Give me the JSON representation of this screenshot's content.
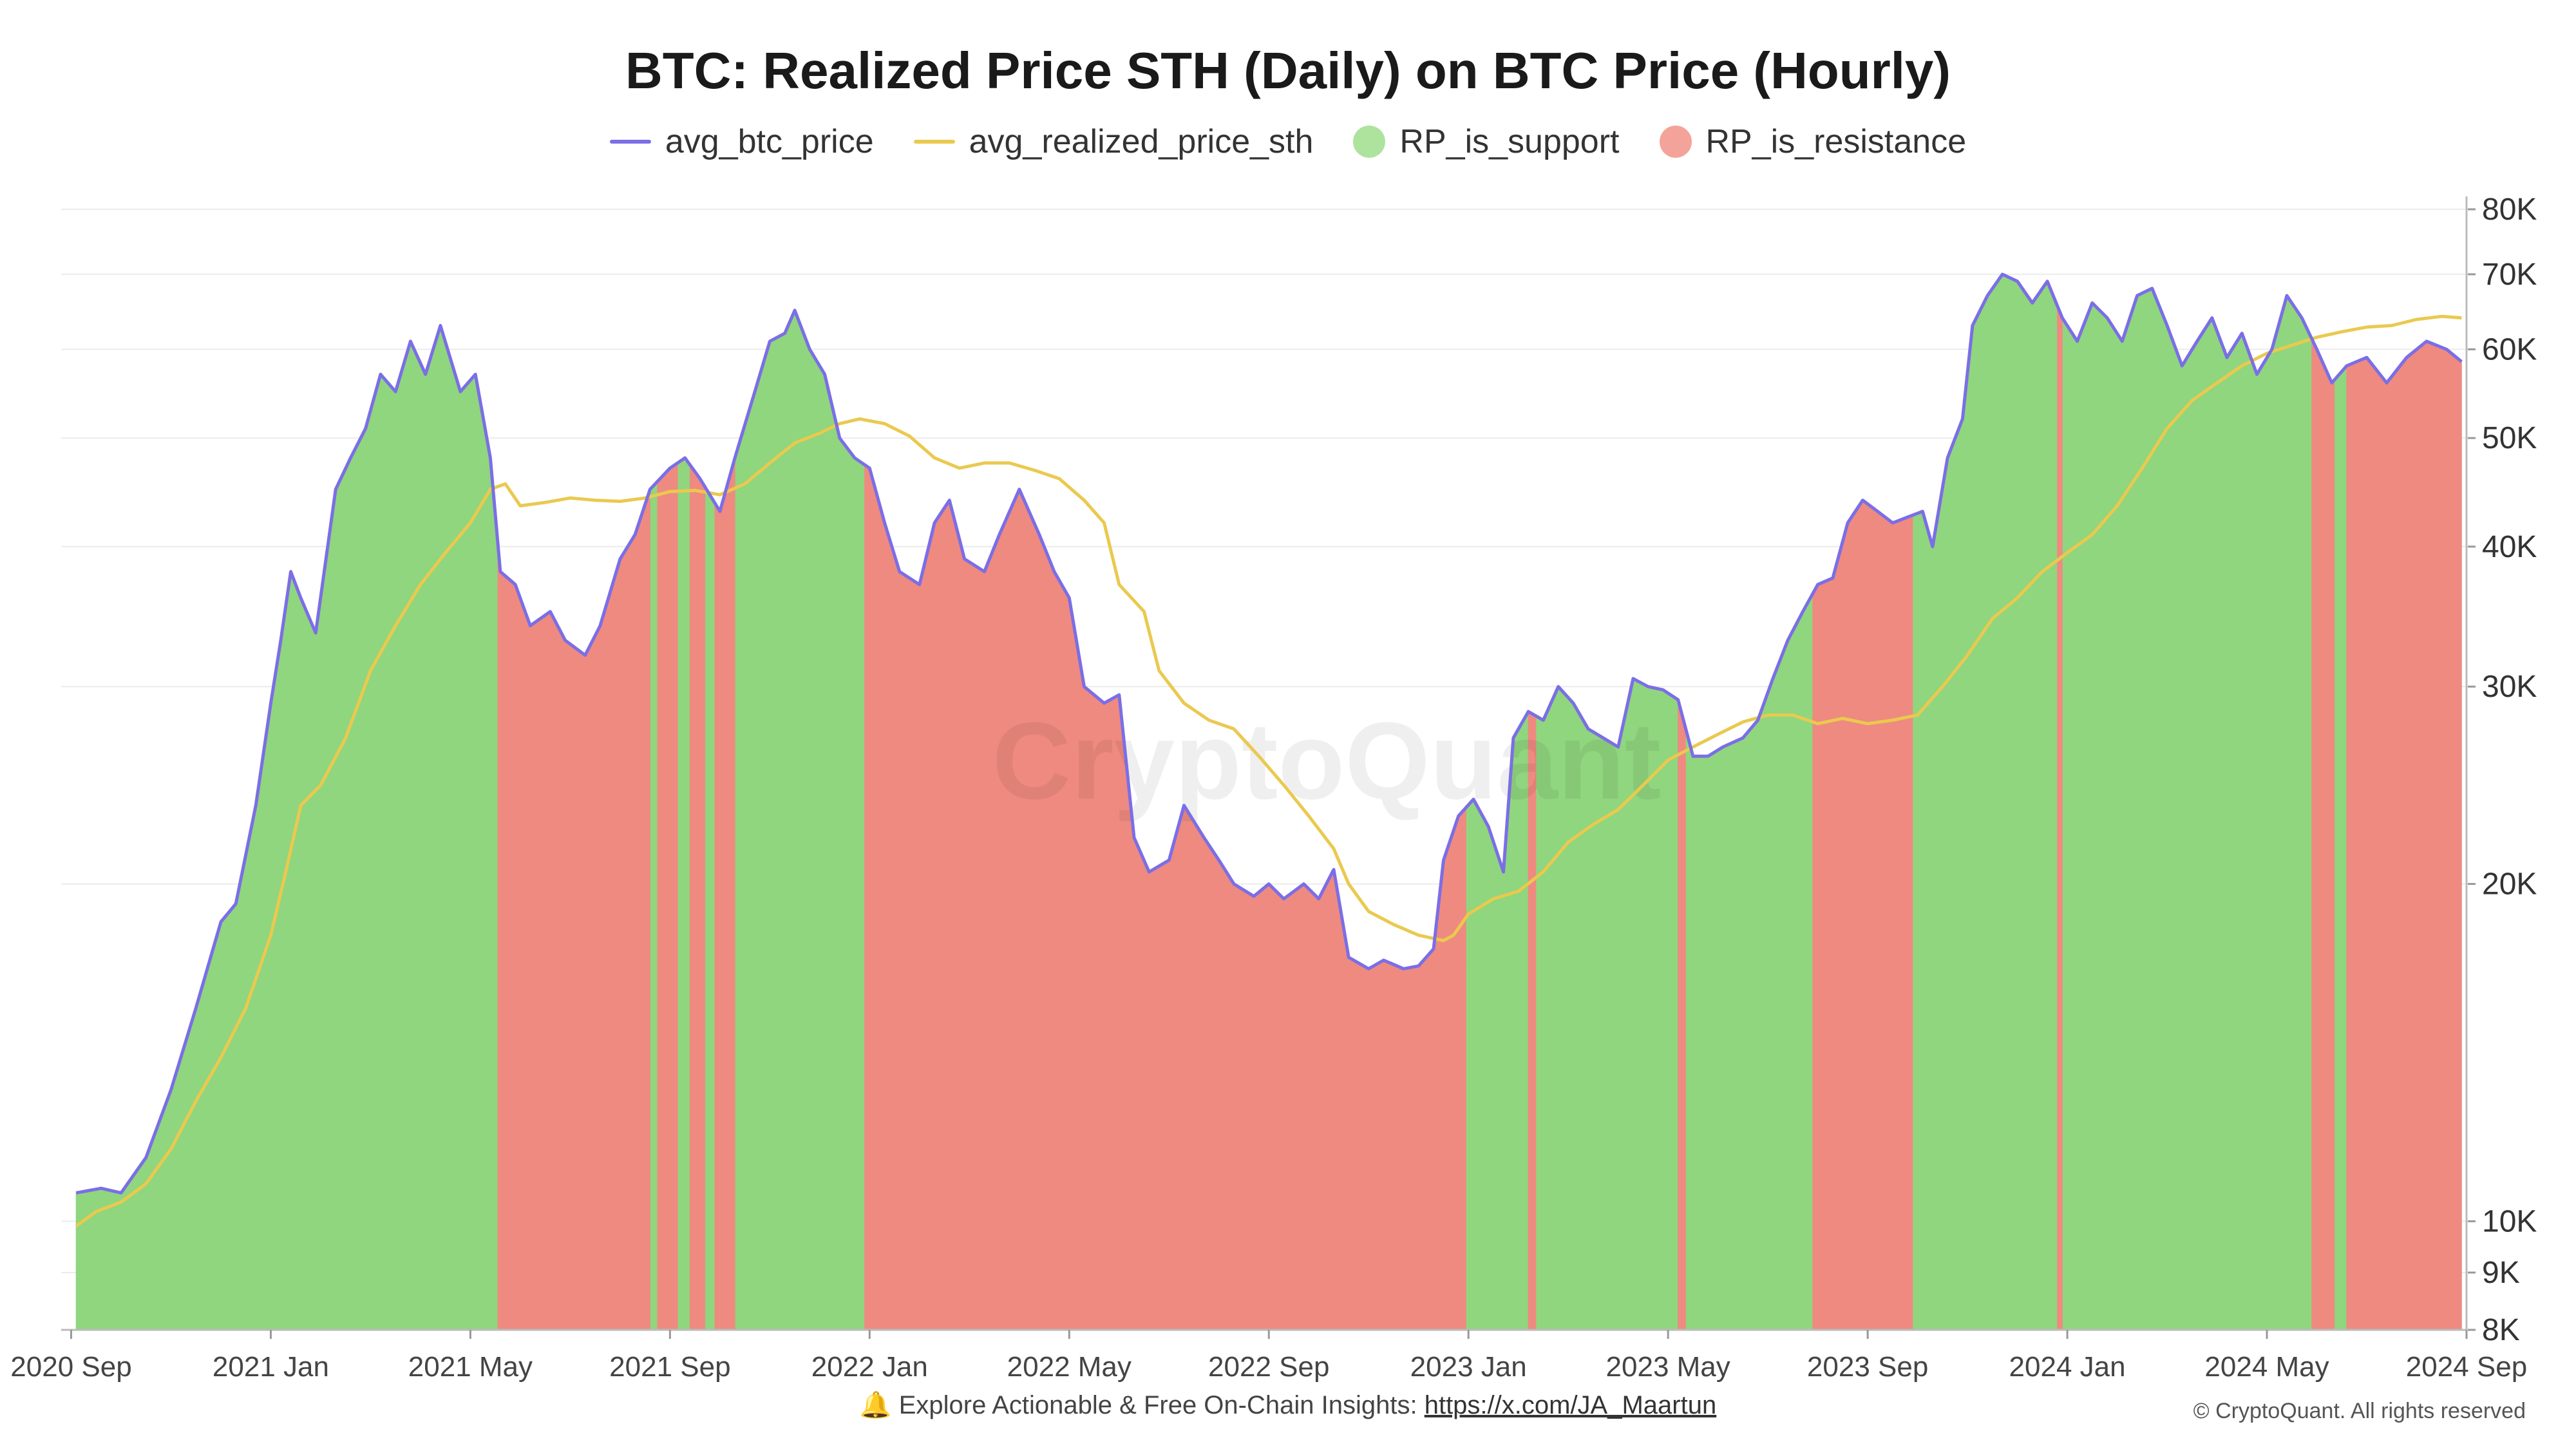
{
  "chart_data": {
    "type": "area",
    "title": "BTC: Realized Price STH (Daily) on BTC Price (Hourly)",
    "yscale": "log",
    "ylim": [
      8000,
      80000
    ],
    "y_ticks": [
      {
        "value": 80000,
        "label": "80K"
      },
      {
        "value": 70000,
        "label": "70K"
      },
      {
        "value": 60000,
        "label": "60K"
      },
      {
        "value": 50000,
        "label": "50K"
      },
      {
        "value": 40000,
        "label": "40K"
      },
      {
        "value": 30000,
        "label": "30K"
      },
      {
        "value": 20000,
        "label": "20K"
      },
      {
        "value": 10000,
        "label": "10K"
      },
      {
        "value": 9000,
        "label": "9K"
      },
      {
        "value": 8000,
        "label": "8K"
      }
    ],
    "x_ticks": [
      {
        "month": 0,
        "label": "2020 Sep"
      },
      {
        "month": 4,
        "label": "2021 Jan"
      },
      {
        "month": 8,
        "label": "2021 May"
      },
      {
        "month": 12,
        "label": "2021 Sep"
      },
      {
        "month": 16,
        "label": "2022 Jan"
      },
      {
        "month": 20,
        "label": "2022 May"
      },
      {
        "month": 24,
        "label": "2022 Sep"
      },
      {
        "month": 28,
        "label": "2023 Jan"
      },
      {
        "month": 32,
        "label": "2023 May"
      },
      {
        "month": 36,
        "label": "2023 Sep"
      },
      {
        "month": 40,
        "label": "2024 Jan"
      },
      {
        "month": 44,
        "label": "2024 May"
      },
      {
        "month": 48,
        "label": "2024 Sep"
      }
    ],
    "x_range_months": [
      -0.2,
      48.0
    ],
    "grid": true,
    "legend_position": "top-center",
    "series": [
      {
        "name": "avg_btc_price",
        "color": "#7b6ee6",
        "points": [
          [
            0.1,
            10600
          ],
          [
            0.6,
            10700
          ],
          [
            1.0,
            10600
          ],
          [
            1.5,
            11400
          ],
          [
            2.0,
            13100
          ],
          [
            2.5,
            15500
          ],
          [
            3.0,
            18500
          ],
          [
            3.3,
            19200
          ],
          [
            3.7,
            23500
          ],
          [
            4.0,
            29000
          ],
          [
            4.2,
            33000
          ],
          [
            4.4,
            38000
          ],
          [
            4.6,
            36000
          ],
          [
            4.9,
            33500
          ],
          [
            5.3,
            45000
          ],
          [
            5.6,
            48000
          ],
          [
            5.9,
            51000
          ],
          [
            6.2,
            57000
          ],
          [
            6.5,
            55000
          ],
          [
            6.8,
            61000
          ],
          [
            7.1,
            57000
          ],
          [
            7.4,
            63000
          ],
          [
            7.8,
            55000
          ],
          [
            8.1,
            57000
          ],
          [
            8.4,
            48000
          ],
          [
            8.6,
            38000
          ],
          [
            8.9,
            37000
          ],
          [
            9.2,
            34000
          ],
          [
            9.6,
            35000
          ],
          [
            9.9,
            33000
          ],
          [
            10.3,
            32000
          ],
          [
            10.6,
            34000
          ],
          [
            11.0,
            39000
          ],
          [
            11.3,
            41000
          ],
          [
            11.6,
            45000
          ],
          [
            12.0,
            47000
          ],
          [
            12.3,
            48000
          ],
          [
            12.6,
            46000
          ],
          [
            13.0,
            43000
          ],
          [
            13.3,
            48000
          ],
          [
            13.7,
            55000
          ],
          [
            14.0,
            61000
          ],
          [
            14.3,
            62000
          ],
          [
            14.5,
            65000
          ],
          [
            14.8,
            60000
          ],
          [
            15.1,
            57000
          ],
          [
            15.4,
            50000
          ],
          [
            15.7,
            48000
          ],
          [
            16.0,
            47000
          ],
          [
            16.3,
            42000
          ],
          [
            16.6,
            38000
          ],
          [
            17.0,
            37000
          ],
          [
            17.3,
            42000
          ],
          [
            17.6,
            44000
          ],
          [
            17.9,
            39000
          ],
          [
            18.3,
            38000
          ],
          [
            18.6,
            41000
          ],
          [
            19.0,
            45000
          ],
          [
            19.4,
            41000
          ],
          [
            19.7,
            38000
          ],
          [
            20.0,
            36000
          ],
          [
            20.3,
            30000
          ],
          [
            20.7,
            29000
          ],
          [
            21.0,
            29500
          ],
          [
            21.3,
            22000
          ],
          [
            21.6,
            20500
          ],
          [
            22.0,
            21000
          ],
          [
            22.3,
            23500
          ],
          [
            22.7,
            22000
          ],
          [
            23.0,
            21000
          ],
          [
            23.3,
            20000
          ],
          [
            23.7,
            19500
          ],
          [
            24.0,
            20000
          ],
          [
            24.3,
            19400
          ],
          [
            24.7,
            20000
          ],
          [
            25.0,
            19400
          ],
          [
            25.3,
            20600
          ],
          [
            25.6,
            17200
          ],
          [
            26.0,
            16800
          ],
          [
            26.3,
            17100
          ],
          [
            26.7,
            16800
          ],
          [
            27.0,
            16900
          ],
          [
            27.3,
            17500
          ],
          [
            27.5,
            21000
          ],
          [
            27.8,
            23000
          ],
          [
            28.1,
            23800
          ],
          [
            28.4,
            22500
          ],
          [
            28.7,
            20500
          ],
          [
            28.9,
            27000
          ],
          [
            29.2,
            28500
          ],
          [
            29.5,
            28000
          ],
          [
            29.8,
            30000
          ],
          [
            30.1,
            29000
          ],
          [
            30.4,
            27500
          ],
          [
            30.7,
            27000
          ],
          [
            31.0,
            26500
          ],
          [
            31.3,
            30500
          ],
          [
            31.6,
            30000
          ],
          [
            31.9,
            29800
          ],
          [
            32.2,
            29200
          ],
          [
            32.5,
            26000
          ],
          [
            32.8,
            26000
          ],
          [
            33.1,
            26500
          ],
          [
            33.5,
            27000
          ],
          [
            33.8,
            28000
          ],
          [
            34.1,
            30500
          ],
          [
            34.4,
            33000
          ],
          [
            34.7,
            35000
          ],
          [
            35.0,
            37000
          ],
          [
            35.3,
            37500
          ],
          [
            35.6,
            42000
          ],
          [
            35.9,
            44000
          ],
          [
            36.2,
            43000
          ],
          [
            36.5,
            42000
          ],
          [
            36.8,
            42500
          ],
          [
            37.1,
            43000
          ],
          [
            37.3,
            40000
          ],
          [
            37.6,
            48000
          ],
          [
            37.9,
            52000
          ],
          [
            38.1,
            63000
          ],
          [
            38.4,
            67000
          ],
          [
            38.7,
            70000
          ],
          [
            39.0,
            69000
          ],
          [
            39.3,
            66000
          ],
          [
            39.6,
            69000
          ],
          [
            39.9,
            64000
          ],
          [
            40.2,
            61000
          ],
          [
            40.5,
            66000
          ],
          [
            40.8,
            64000
          ],
          [
            41.1,
            61000
          ],
          [
            41.4,
            67000
          ],
          [
            41.7,
            68000
          ],
          [
            42.0,
            63000
          ],
          [
            42.3,
            58000
          ],
          [
            42.6,
            61000
          ],
          [
            42.9,
            64000
          ],
          [
            43.2,
            59000
          ],
          [
            43.5,
            62000
          ],
          [
            43.8,
            57000
          ],
          [
            44.1,
            60000
          ],
          [
            44.4,
            67000
          ],
          [
            44.7,
            64000
          ],
          [
            45.0,
            60000
          ],
          [
            45.3,
            56000
          ],
          [
            45.6,
            58000
          ],
          [
            46.0,
            59000
          ],
          [
            46.4,
            56000
          ],
          [
            46.8,
            59000
          ],
          [
            47.2,
            61000
          ],
          [
            47.6,
            60000
          ],
          [
            47.9,
            58500
          ]
        ]
      },
      {
        "name": "avg_realized_price_sth",
        "color": "#eac94f",
        "points": [
          [
            0.1,
            9900
          ],
          [
            0.5,
            10200
          ],
          [
            1.0,
            10400
          ],
          [
            1.5,
            10800
          ],
          [
            2.0,
            11600
          ],
          [
            2.5,
            12800
          ],
          [
            3.0,
            14000
          ],
          [
            3.5,
            15500
          ],
          [
            4.0,
            18000
          ],
          [
            4.3,
            20500
          ],
          [
            4.6,
            23500
          ],
          [
            5.0,
            24500
          ],
          [
            5.5,
            27000
          ],
          [
            6.0,
            31000
          ],
          [
            6.5,
            34000
          ],
          [
            7.0,
            37000
          ],
          [
            7.5,
            39500
          ],
          [
            8.0,
            42000
          ],
          [
            8.4,
            45000
          ],
          [
            8.7,
            45500
          ],
          [
            9.0,
            43500
          ],
          [
            9.5,
            43800
          ],
          [
            10.0,
            44200
          ],
          [
            10.5,
            44000
          ],
          [
            11.0,
            43900
          ],
          [
            11.5,
            44200
          ],
          [
            12.0,
            44800
          ],
          [
            12.5,
            44900
          ],
          [
            13.0,
            44500
          ],
          [
            13.5,
            45500
          ],
          [
            14.0,
            47500
          ],
          [
            14.5,
            49500
          ],
          [
            15.0,
            50500
          ],
          [
            15.4,
            51500
          ],
          [
            15.8,
            52000
          ],
          [
            16.3,
            51500
          ],
          [
            16.8,
            50200
          ],
          [
            17.3,
            48000
          ],
          [
            17.8,
            47000
          ],
          [
            18.3,
            47500
          ],
          [
            18.8,
            47500
          ],
          [
            19.3,
            46800
          ],
          [
            19.8,
            46000
          ],
          [
            20.3,
            44000
          ],
          [
            20.7,
            42000
          ],
          [
            21.0,
            37000
          ],
          [
            21.5,
            35000
          ],
          [
            21.8,
            31000
          ],
          [
            22.3,
            29000
          ],
          [
            22.8,
            28000
          ],
          [
            23.3,
            27500
          ],
          [
            23.8,
            26000
          ],
          [
            24.3,
            24500
          ],
          [
            24.8,
            23000
          ],
          [
            25.3,
            21500
          ],
          [
            25.6,
            20000
          ],
          [
            26.0,
            18900
          ],
          [
            26.5,
            18400
          ],
          [
            27.0,
            18000
          ],
          [
            27.5,
            17800
          ],
          [
            27.7,
            18000
          ],
          [
            28.0,
            18800
          ],
          [
            28.5,
            19400
          ],
          [
            29.0,
            19700
          ],
          [
            29.5,
            20500
          ],
          [
            30.0,
            21800
          ],
          [
            30.5,
            22600
          ],
          [
            31.0,
            23300
          ],
          [
            31.5,
            24500
          ],
          [
            32.0,
            25800
          ],
          [
            32.5,
            26500
          ],
          [
            33.0,
            27200
          ],
          [
            33.5,
            27900
          ],
          [
            34.0,
            28300
          ],
          [
            34.5,
            28300
          ],
          [
            35.0,
            27800
          ],
          [
            35.5,
            28100
          ],
          [
            36.0,
            27800
          ],
          [
            36.5,
            28000
          ],
          [
            37.0,
            28300
          ],
          [
            37.5,
            30000
          ],
          [
            38.0,
            32000
          ],
          [
            38.5,
            34500
          ],
          [
            39.0,
            36000
          ],
          [
            39.5,
            38000
          ],
          [
            40.0,
            39500
          ],
          [
            40.5,
            41000
          ],
          [
            41.0,
            43500
          ],
          [
            41.5,
            47000
          ],
          [
            42.0,
            51000
          ],
          [
            42.5,
            54000
          ],
          [
            43.0,
            56000
          ],
          [
            43.5,
            58000
          ],
          [
            44.0,
            59500
          ],
          [
            44.5,
            60500
          ],
          [
            45.0,
            61500
          ],
          [
            45.5,
            62200
          ],
          [
            46.0,
            62800
          ],
          [
            46.5,
            63000
          ],
          [
            47.0,
            63800
          ],
          [
            47.5,
            64200
          ],
          [
            47.9,
            64000
          ]
        ]
      }
    ],
    "regions": [
      {
        "name": "RP_is_support",
        "color": "#8fd67e",
        "ranges": [
          [
            0.1,
            8.55
          ],
          [
            11.6,
            11.75
          ],
          [
            12.15,
            12.4
          ],
          [
            12.7,
            12.9
          ],
          [
            13.3,
            15.9
          ],
          [
            27.95,
            29.2
          ],
          [
            29.35,
            32.2
          ],
          [
            32.35,
            34.9
          ],
          [
            36.9,
            39.8
          ],
          [
            39.9,
            44.9
          ],
          [
            45.35,
            45.6
          ]
        ]
      },
      {
        "name": "RP_is_resistance",
        "color": "#ef8a80",
        "ranges": [
          [
            8.55,
            11.6
          ],
          [
            11.75,
            12.15
          ],
          [
            12.4,
            12.7
          ],
          [
            12.9,
            13.3
          ],
          [
            15.9,
            27.95
          ],
          [
            29.2,
            29.35
          ],
          [
            32.2,
            32.35
          ],
          [
            34.9,
            36.9
          ],
          [
            39.8,
            39.9
          ],
          [
            44.9,
            45.35
          ],
          [
            45.6,
            47.9
          ]
        ]
      }
    ],
    "watermark": "CryptoQuant"
  },
  "legend": [
    {
      "name": "avg_btc_price",
      "kind": "line",
      "color": "#7b6ee6"
    },
    {
      "name": "avg_realized_price_sth",
      "kind": "line",
      "color": "#eac94f"
    },
    {
      "name": "RP_is_support",
      "kind": "dot",
      "color": "#aee39e"
    },
    {
      "name": "RP_is_resistance",
      "kind": "dot",
      "color": "#f4a39a"
    }
  ],
  "footer": {
    "bell": "🔔",
    "text": "Explore Actionable & Free On-Chain Insights:",
    "link": "https://x.com/JA_Maartun",
    "copyright": "© CryptoQuant. All rights reserved"
  }
}
